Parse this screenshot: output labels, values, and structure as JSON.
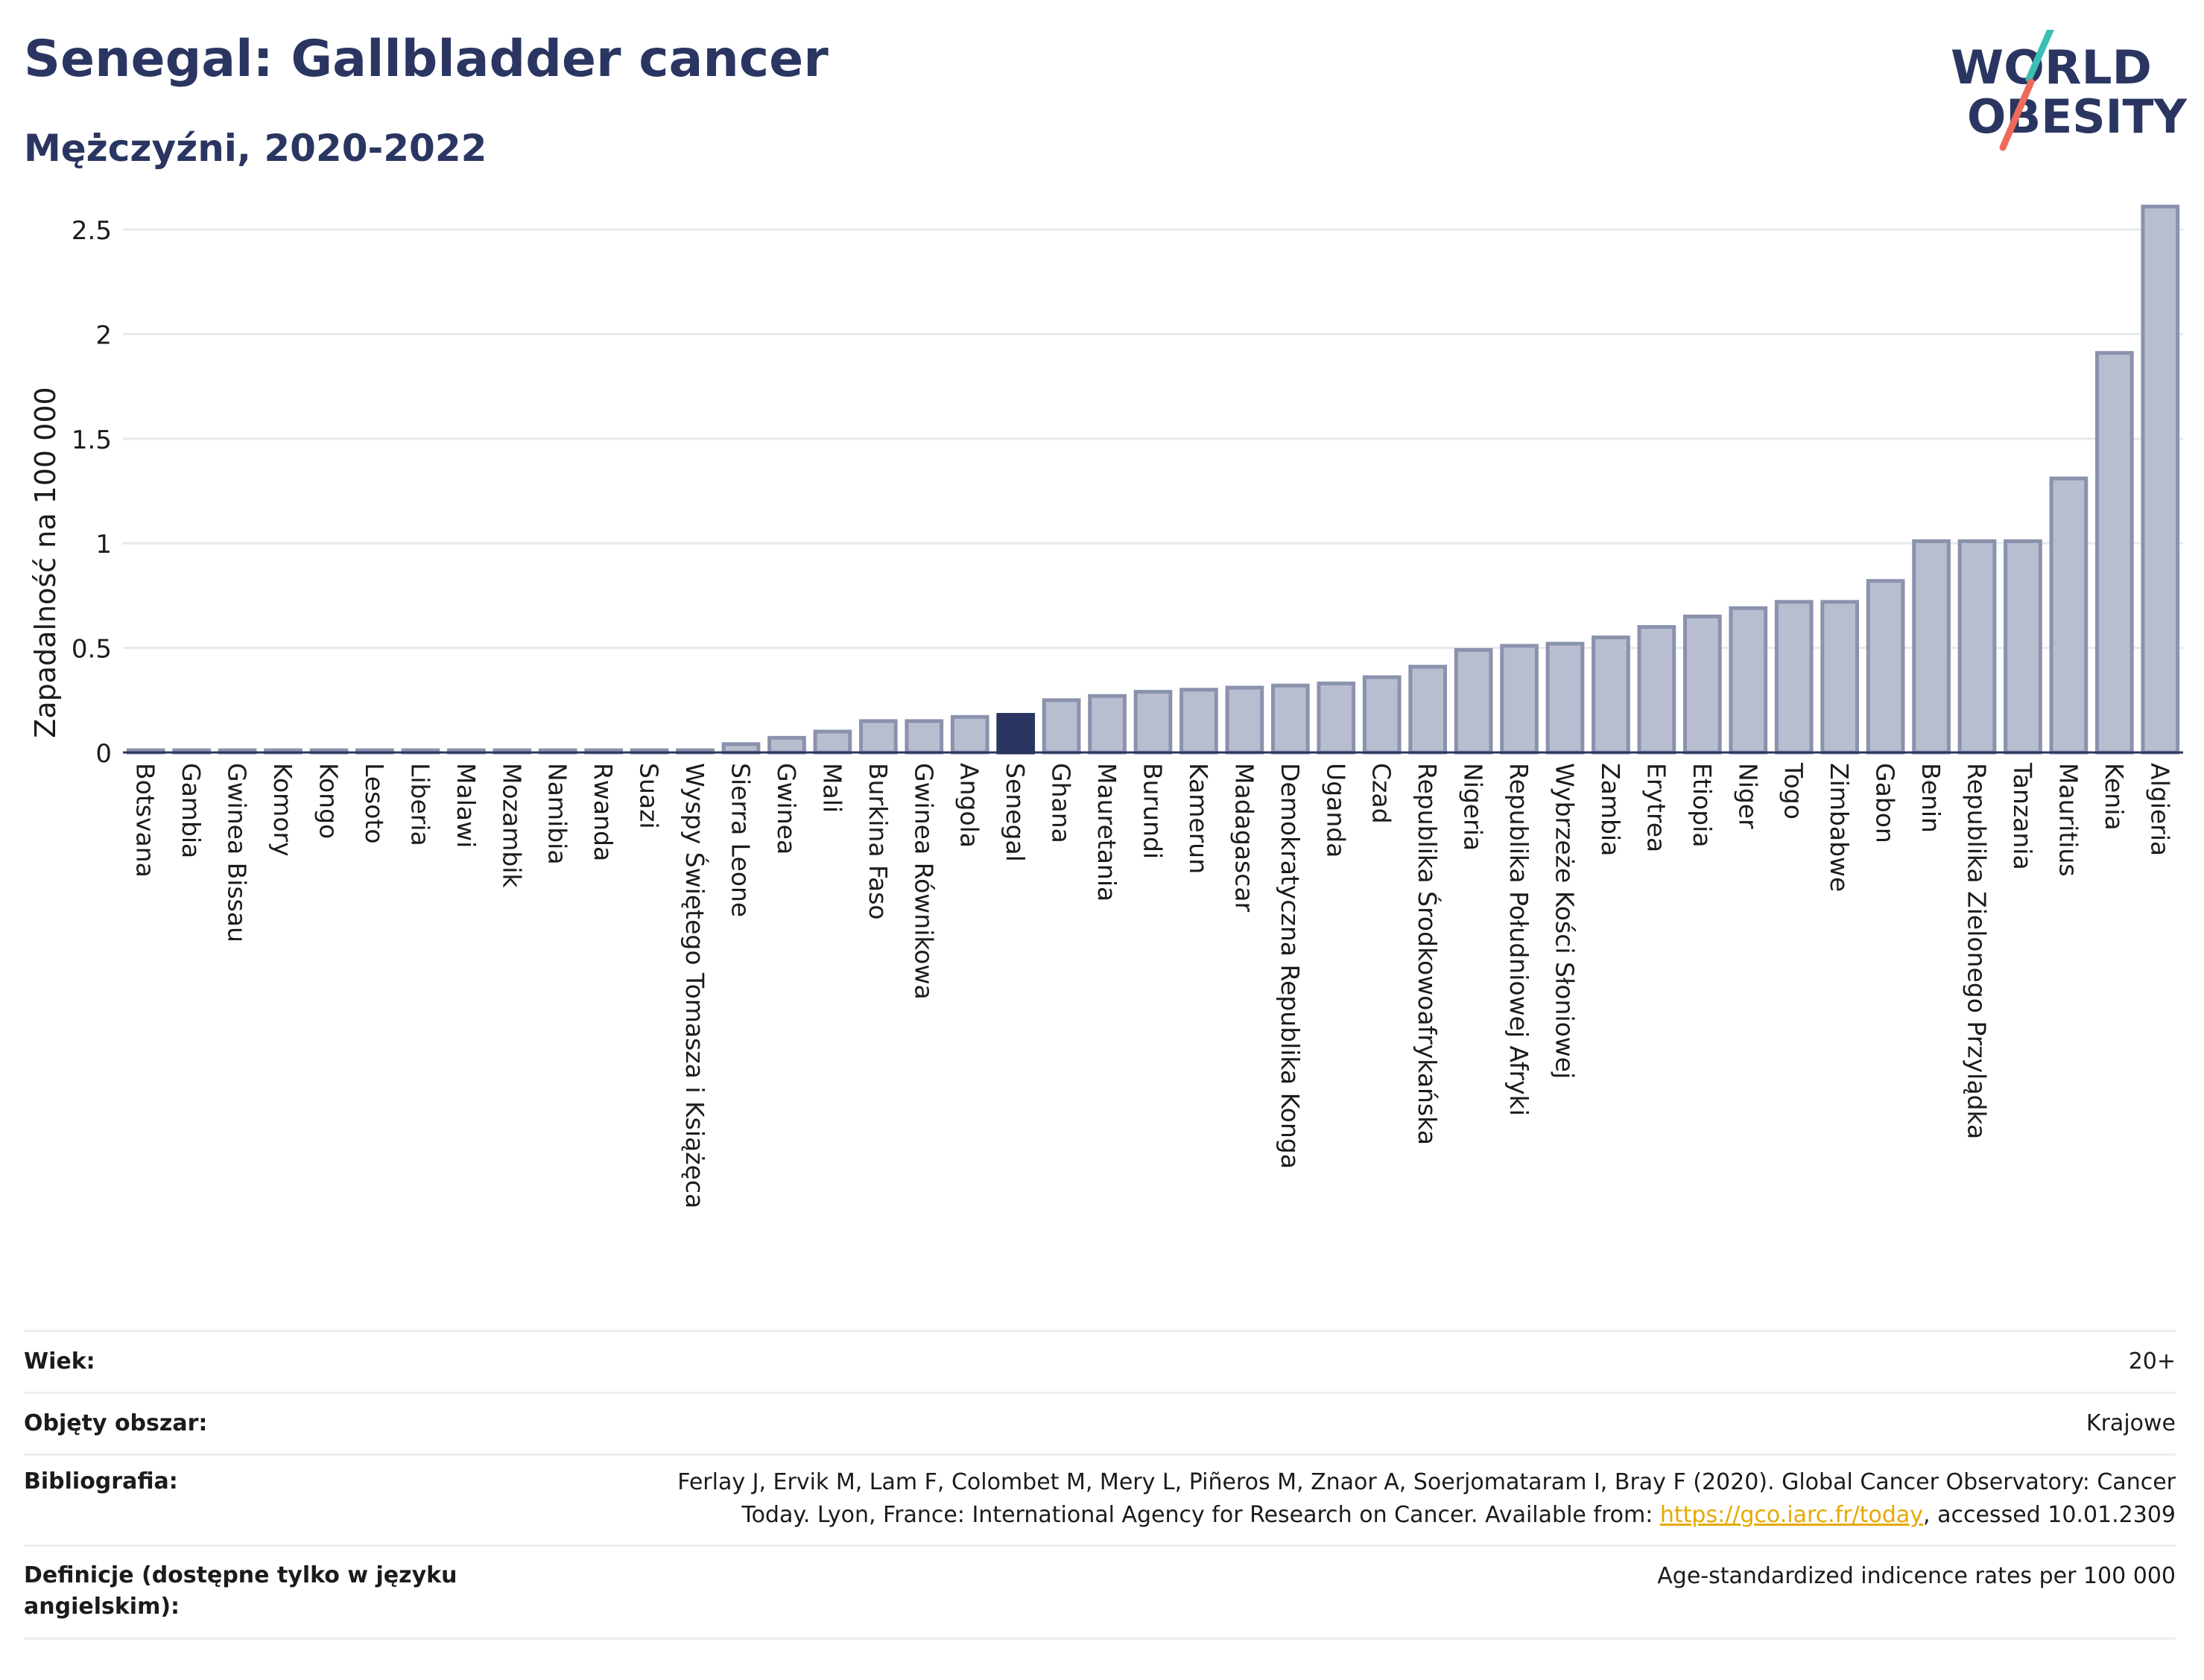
{
  "header": {
    "title": "Senegal: Gallbladder cancer",
    "subtitle": "Mężczyźni, 2020-2022"
  },
  "logo": {
    "line1": "WORLD",
    "line2": "OBESITY"
  },
  "colors": {
    "bar": "#b8bdcf",
    "bar_border": "#8a92ad",
    "highlight": "#2a3661",
    "grid": "#e8e9ee",
    "axis": "#2a3661",
    "logo_teal": "#3bbfb4",
    "logo_coral": "#ee6b5b",
    "link": "#e5a900"
  },
  "chart_data": {
    "type": "bar",
    "ylabel": "Zapadalność na 100 000",
    "ylim": [
      0,
      2.6
    ],
    "yticks": [
      0,
      0.5,
      1,
      1.5,
      2,
      2.5
    ],
    "ytick_labels": [
      "0",
      "0.5",
      "1",
      "1.5",
      "2",
      "2.5"
    ],
    "highlight": "Senegal",
    "categories": [
      "Botsvana",
      "Gambia",
      "Gwinea Bissau",
      "Komory",
      "Kongo",
      "Lesoto",
      "Liberia",
      "Malawi",
      "Mozambik",
      "Namibia",
      "Rwanda",
      "Suazi",
      "Wyspy Świętego Tomasza i Książęca",
      "Sierra Leone",
      "Gwinea",
      "Mali",
      "Burkina Faso",
      "Gwinea Równikowa",
      "Angola",
      "Senegal",
      "Ghana",
      "Mauretania",
      "Burundi",
      "Kamerun",
      "Madagascar",
      "Demokratyczna Republika Konga",
      "Uganda",
      "Czad",
      "Republika Środkowoafrykańska",
      "Nigeria",
      "Republika Południowej Afryki",
      "Wybrzeże Kości Słoniowej",
      "Zambia",
      "Erytrea",
      "Etiopia",
      "Niger",
      "Togo",
      "Zimbabwe",
      "Gabon",
      "Benin",
      "Republika Zielonego Przylądka",
      "Tanzania",
      "Mauritius",
      "Kenia",
      "Algieria"
    ],
    "values": [
      0.01,
      0.01,
      0.01,
      0.01,
      0.01,
      0.01,
      0.01,
      0.01,
      0.01,
      0.01,
      0.01,
      0.01,
      0.01,
      0.04,
      0.07,
      0.1,
      0.15,
      0.15,
      0.17,
      0.18,
      0.25,
      0.27,
      0.29,
      0.3,
      0.31,
      0.32,
      0.33,
      0.36,
      0.41,
      0.49,
      0.51,
      0.52,
      0.55,
      0.6,
      0.65,
      0.69,
      0.72,
      0.72,
      0.82,
      1.01,
      1.01,
      1.01,
      1.31,
      1.91,
      2.61
    ]
  },
  "meta": {
    "rows": [
      {
        "key": "Wiek:",
        "value": "20+"
      },
      {
        "key": "Objęty obszar:",
        "value": "Krajowe"
      },
      {
        "key": "Bibliografia:",
        "value_line1": "Ferlay J, Ervik M, Lam F, Colombet M, Mery L, Piñeros M, Znaor A, Soerjomataram I, Bray F (2020). Global Cancer Observatory: Cancer",
        "value_line2_pre": "Today. Lyon, France: International Agency for Research on Cancer. Available from: ",
        "link": "https://gco.iarc.fr/today",
        "value_line2_post": ", accessed 10.01.2309"
      },
      {
        "key": "Definicje (dostępne tylko w języku angielskim):",
        "value": "Age-standardized indicence rates per 100 000"
      }
    ]
  }
}
